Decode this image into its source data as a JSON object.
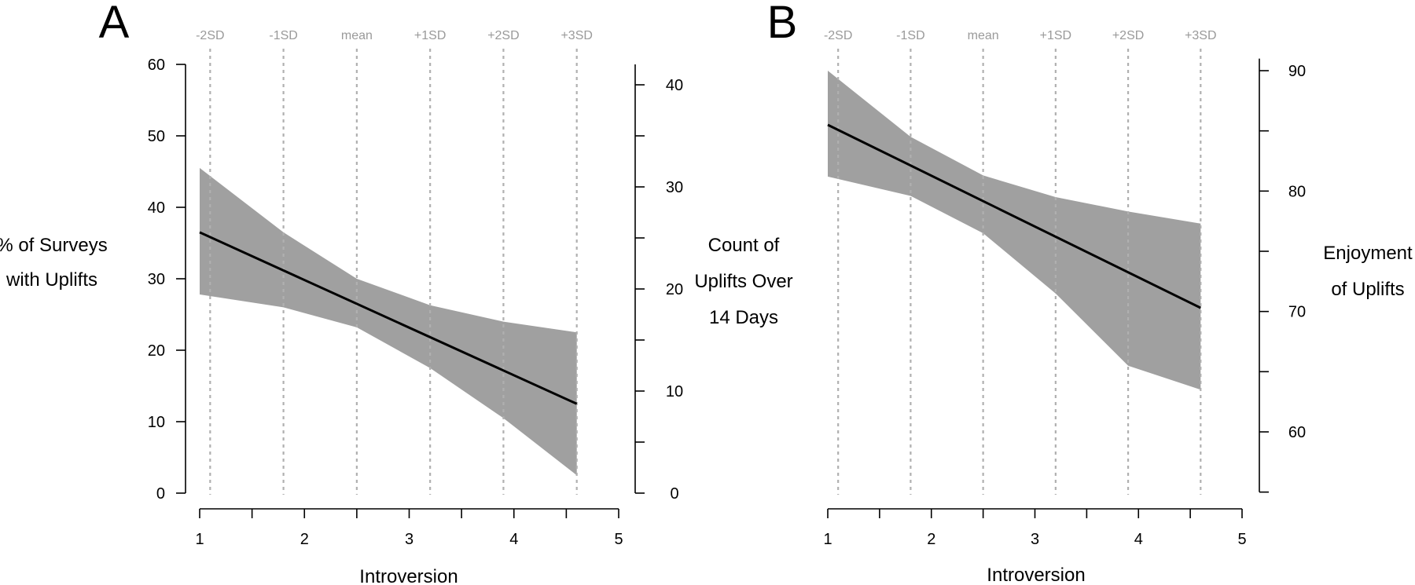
{
  "chart_data": [
    {
      "panel": "A",
      "type": "line",
      "xlabel": "Introversion",
      "xlim": [
        1,
        5
      ],
      "xticks": [
        1,
        2,
        3,
        4,
        5
      ],
      "x_minor_ticks": [
        1.5,
        2.5,
        3.5,
        4.5
      ],
      "ylabel_left": [
        "% of Surveys",
        "with Uplifts"
      ],
      "ylim_left": [
        0,
        60
      ],
      "yticks_left": [
        0,
        10,
        20,
        30,
        40,
        50,
        60
      ],
      "ylabel_right": [
        "Count of",
        "Uplifts Over",
        "14 Days"
      ],
      "ylim_right": [
        0,
        42
      ],
      "yticks_right": [
        0,
        10,
        20,
        30,
        40
      ],
      "sd_markers": [
        {
          "label": "-2SD",
          "x": 1.1
        },
        {
          "label": "-1SD",
          "x": 1.8
        },
        {
          "label": "mean",
          "x": 2.5
        },
        {
          "label": "+1SD",
          "x": 3.2
        },
        {
          "label": "+2SD",
          "x": 3.9
        },
        {
          "label": "+3SD",
          "x": 4.6
        }
      ],
      "fit": {
        "x": [
          1.0,
          4.6
        ],
        "y": [
          36.5,
          12.5
        ]
      },
      "ci_upper": {
        "x": [
          1.0,
          1.8,
          2.5,
          3.2,
          3.9,
          4.6
        ],
        "y": [
          45.5,
          36.5,
          30.0,
          26.3,
          24.0,
          22.5
        ]
      },
      "ci_lower": {
        "x": [
          1.0,
          1.8,
          2.5,
          3.2,
          3.9,
          4.6
        ],
        "y": [
          27.8,
          26.0,
          23.2,
          17.5,
          10.5,
          2.5
        ]
      }
    },
    {
      "panel": "B",
      "type": "line",
      "xlabel": "Introversion",
      "xlim": [
        1,
        5
      ],
      "xticks": [
        1,
        2,
        3,
        4,
        5
      ],
      "x_minor_ticks": [
        1.5,
        2.5,
        3.5,
        4.5
      ],
      "ylim_right": [
        55,
        91
      ],
      "yticks_right": [
        60,
        70,
        80,
        90
      ],
      "yticks_right_minor": [
        55,
        65,
        75,
        85
      ],
      "ylabel_right": [
        "Enjoyment",
        "of Uplifts"
      ],
      "sd_markers": [
        {
          "label": "-2SD",
          "x": 1.1
        },
        {
          "label": "-1SD",
          "x": 1.8
        },
        {
          "label": "mean",
          "x": 2.5
        },
        {
          "label": "+1SD",
          "x": 3.2
        },
        {
          "label": "+2SD",
          "x": 3.9
        },
        {
          "label": "+3SD",
          "x": 4.6
        }
      ],
      "fit": {
        "x": [
          1.0,
          4.6
        ],
        "y": [
          85.5,
          70.3
        ]
      },
      "ci_upper": {
        "x": [
          1.0,
          1.8,
          2.5,
          3.2,
          3.9,
          4.6
        ],
        "y": [
          90.0,
          84.5,
          81.3,
          79.5,
          78.3,
          77.3
        ]
      },
      "ci_lower": {
        "x": [
          1.0,
          1.8,
          2.5,
          3.2,
          3.9,
          4.6
        ],
        "y": [
          81.2,
          79.6,
          76.5,
          71.5,
          65.5,
          63.5
        ]
      }
    }
  ]
}
